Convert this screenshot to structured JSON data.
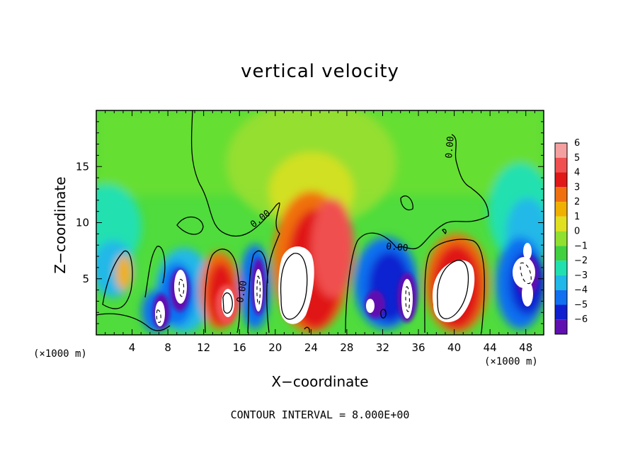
{
  "chart_data": {
    "type": "heatmap",
    "title": "vertical velocity",
    "xlabel": "X−coordinate",
    "ylabel": "Z−coordinate",
    "x_unit_left": "(×1000 m)",
    "x_unit_right": "(×1000 m)",
    "xlim": [
      0,
      50
    ],
    "ylim": [
      0,
      20
    ],
    "x_ticks": [
      4,
      8,
      12,
      16,
      20,
      24,
      28,
      32,
      36,
      40,
      44,
      48
    ],
    "y_ticks": [
      5,
      10,
      15
    ],
    "colorbar": {
      "levels": [
        6,
        5,
        4,
        3,
        2,
        1,
        0,
        -1,
        -2,
        -3,
        -4,
        -5,
        -6
      ],
      "level_labels": [
        "6",
        "5",
        "4",
        "3",
        "2",
        "1",
        "0",
        "−1",
        "−2",
        "−3",
        "−4",
        "−5",
        "−6"
      ],
      "colors": [
        "#f4a0a0",
        "#f05050",
        "#e01818",
        "#f07010",
        "#f0b000",
        "#e0e020",
        "#90e030",
        "#40d040",
        "#20e0b0",
        "#20b8e8",
        "#1070f0",
        "#1020d0",
        "#6010b0"
      ]
    },
    "contour_label": "0.00",
    "cells": [
      {
        "x": 3.5,
        "z": 4.8,
        "w": 1.2,
        "value": 2.8
      },
      {
        "x": 7.5,
        "z": 2.5,
        "w": 1.6,
        "value": -6.5
      },
      {
        "x": 9.5,
        "z": 4.2,
        "w": 1.4,
        "value": -7.0
      },
      {
        "x": 14.0,
        "z": 3.0,
        "w": 1.6,
        "value": 8.0
      },
      {
        "x": 18.0,
        "z": 4.0,
        "w": 1.4,
        "value": -7.0
      },
      {
        "x": 22.5,
        "z": 4.5,
        "w": 2.6,
        "value": 12.0
      },
      {
        "x": 26.0,
        "z": 7.0,
        "w": 2.5,
        "value": 4.0
      },
      {
        "x": 33.0,
        "z": 4.0,
        "w": 2.5,
        "value": -7.0
      },
      {
        "x": 39.5,
        "z": 4.2,
        "w": 2.8,
        "value": 12.0
      },
      {
        "x": 48.0,
        "z": 4.5,
        "w": 1.8,
        "value": -7.0
      }
    ],
    "footer": "CONTOUR INTERVAL = 8.000E+00"
  }
}
